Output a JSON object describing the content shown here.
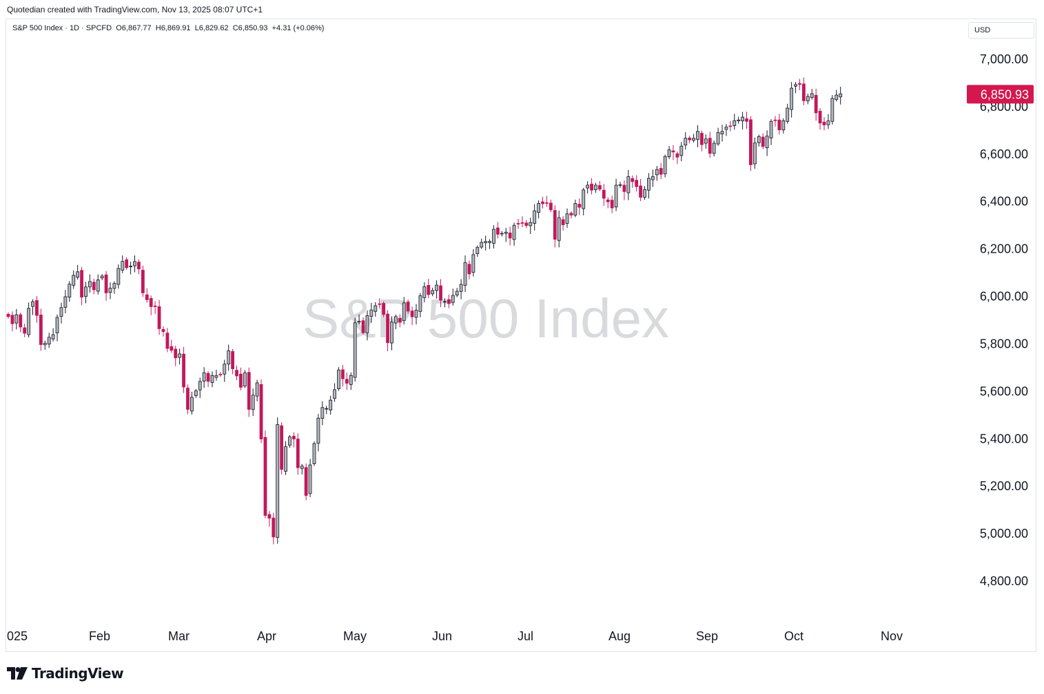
{
  "caption": "Quotedian created with TradingView.com, Nov 13, 2025 08:07 UTC+1",
  "legend": {
    "symbol": "S&P 500 Index · 1D · SPCFD",
    "open_label": "O",
    "open": "6,867.77",
    "high_label": "H",
    "high": "6,869.91",
    "low_label": "L",
    "low": "6,829.62",
    "close_label": "C",
    "close": "6,850.93",
    "change": "+4.31 (+0.06%)"
  },
  "currency": "USD",
  "watermark": "S&P 500 Index",
  "brand": "TradingView",
  "colors": {
    "up": "#b2b5be",
    "down": "#c2185b",
    "up_border": "#131722",
    "price_tag": "#d4174f"
  },
  "chart_data": {
    "type": "candlestick",
    "y_ticks": [
      "7,000.00",
      "6,800.00",
      "6,600.00",
      "6,400.00",
      "6,200.00",
      "6,000.00",
      "5,800.00",
      "5,600.00",
      "5,400.00",
      "5,200.00",
      "5,000.00",
      "4,800.00"
    ],
    "y_tick_values": [
      7000,
      6800,
      6600,
      6400,
      6200,
      6000,
      5800,
      5600,
      5400,
      5200,
      5000,
      4800
    ],
    "x_ticks": [
      "025",
      "Feb",
      "Mar",
      "Apr",
      "May",
      "Jun",
      "Jul",
      "Aug",
      "Sep",
      "Oct",
      "Nov"
    ],
    "last_price": 6850.93,
    "last_price_label": "6,850.93",
    "closes": [
      5912,
      5882,
      5920,
      5868,
      5842,
      5947,
      5975,
      5917,
      5794,
      5800,
      5825,
      5836,
      5909,
      5950,
      5996,
      6049,
      6086,
      6101,
      5994,
      6037,
      6060,
      6025,
      6067,
      6083,
      6012,
      6032,
      6052,
      6115,
      6145,
      6118,
      6125,
      6144,
      6113,
      6012,
      5983,
      5954,
      5954,
      5861,
      5849,
      5778,
      5770,
      5738,
      5755,
      5615,
      5521,
      5572,
      5599,
      5639,
      5675,
      5639,
      5664,
      5663,
      5667,
      5712,
      5768,
      5692,
      5662,
      5614,
      5675,
      5521,
      5581,
      5633,
      5396,
      5074,
      5062,
      4983,
      5457,
      5268,
      5364,
      5405,
      5396,
      5275,
      5282,
      5158,
      5287,
      5376,
      5484,
      5529,
      5525,
      5560,
      5604,
      5687,
      5650,
      5631,
      5664,
      5886,
      5892,
      5844,
      5916,
      5940,
      5958,
      5963,
      5921,
      5802,
      5889,
      5912,
      5888,
      5970,
      5935,
      5911,
      5939,
      6000,
      6038,
      6005,
      6022,
      6045,
      5981,
      5976,
      5967,
      6001,
      6019,
      6048,
      6140,
      6092,
      6173,
      6204,
      6225,
      6229,
      6229,
      6280,
      6259,
      6263,
      6268,
      6243,
      6297,
      6303,
      6305,
      6296,
      6309,
      6358,
      6389,
      6388,
      6390,
      6362,
      6238,
      6329,
      6299,
      6345,
      6340,
      6389,
      6373,
      6446,
      6466,
      6445,
      6466,
      6449,
      6411,
      6396,
      6370,
      6466,
      6468,
      6439,
      6502,
      6481,
      6460,
      6415,
      6448,
      6495,
      6502,
      6532,
      6512,
      6587,
      6615,
      6606,
      6584,
      6631,
      6664,
      6657,
      6664,
      6693,
      6637,
      6661,
      6600,
      6643,
      6688,
      6693,
      6711,
      6715,
      6738,
      6741,
      6753,
      6735,
      6552,
      6644,
      6671,
      6629,
      6673,
      6735,
      6738,
      6699,
      6738,
      6791,
      6875,
      6890,
      6891,
      6822,
      6840,
      6852,
      6771,
      6728,
      6720,
      6737,
      6832,
      6846,
      6851
    ],
    "ylim": [
      4770,
      7050
    ]
  }
}
